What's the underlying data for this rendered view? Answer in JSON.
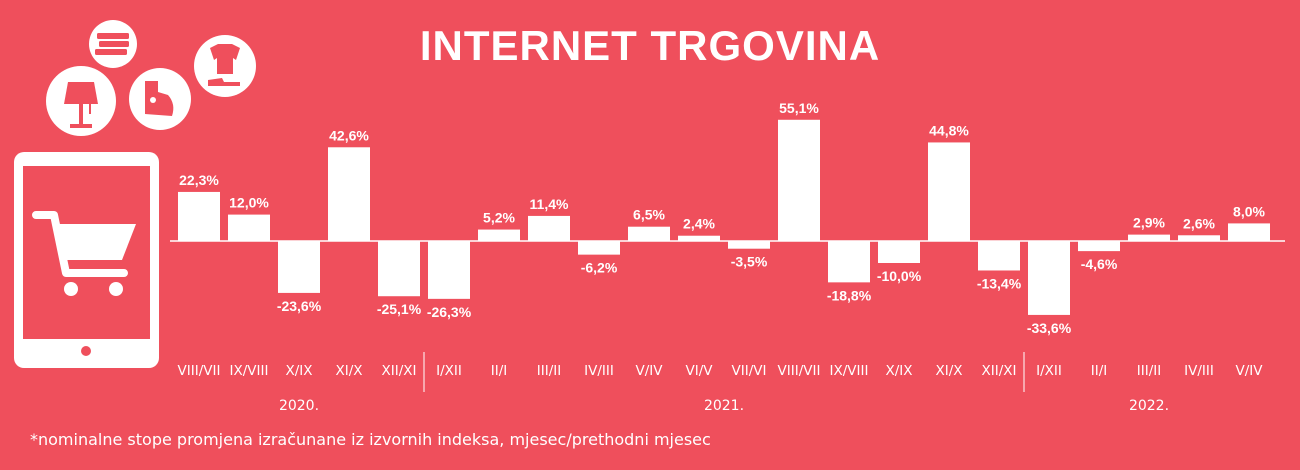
{
  "title": "INTERNET TRGOVINA",
  "footnote": "*nominalne stope promjena izračunane iz izvornih indeksa, mjesec/prethodni mjesec",
  "colors": {
    "background": "#ef4f5c",
    "bar": "#ffffff",
    "text": "#ffffff"
  },
  "icons": [
    "books-icon",
    "lamp-icon",
    "iron-icon",
    "clothes-shoe-icon",
    "tablet-cart-icon"
  ],
  "chart_data": {
    "type": "bar",
    "categories": [
      "VIII/VII",
      "IX/VIII",
      "X/IX",
      "XI/X",
      "XII/XI",
      "I/XII",
      "II/I",
      "III/II",
      "IV/III",
      "V/IV",
      "VI/V",
      "VII/VI",
      "VIII/VII",
      "IX/VIII",
      "X/IX",
      "XI/X",
      "XII/XI",
      "I/XII",
      "II/I",
      "III/II",
      "IV/III",
      "V/IV"
    ],
    "values": [
      22.3,
      12.0,
      -23.6,
      42.6,
      -25.1,
      -26.3,
      5.2,
      11.4,
      -6.2,
      6.5,
      2.4,
      -3.5,
      55.1,
      -18.8,
      -10.0,
      44.8,
      -13.4,
      -33.6,
      -4.6,
      2.9,
      2.6,
      8.0
    ],
    "value_labels": [
      "22,3%",
      "12,0%",
      "-23,6%",
      "42,6%",
      "-25,1%",
      "-26,3%",
      "5,2%",
      "11,4%",
      "-6,2%",
      "6,5%",
      "2,4%",
      "-3,5%",
      "55,1%",
      "-18,8%",
      "-10,0%",
      "44,8%",
      "-13,4%",
      "-33,6%",
      "-4,6%",
      "2,9%",
      "2,6%",
      "8,0%"
    ],
    "year_groups": [
      {
        "label": "2020.",
        "start": 0,
        "end": 4
      },
      {
        "label": "2021.",
        "start": 5,
        "end": 16
      },
      {
        "label": "2022.",
        "start": 17,
        "end": 21
      }
    ],
    "grid": false,
    "legend": "none"
  }
}
